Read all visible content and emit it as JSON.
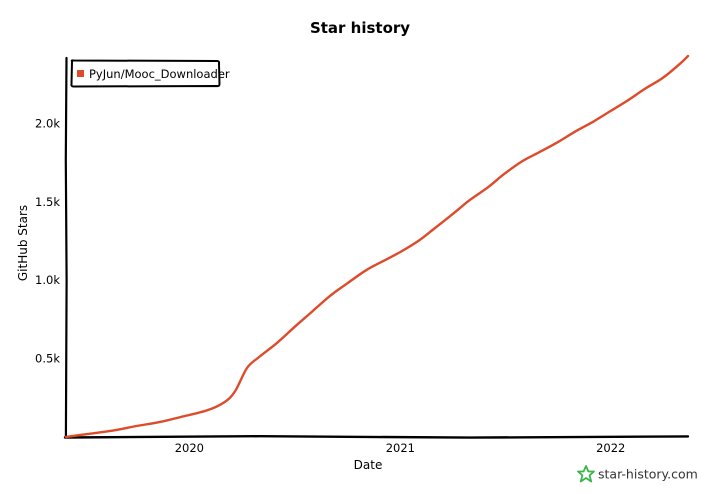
{
  "chart_data": {
    "type": "line",
    "title": "Star history",
    "xlabel": "Date",
    "ylabel": "GitHub Stars",
    "x_ticks": [
      "2020",
      "2021",
      "2022"
    ],
    "y_ticks": [
      "0.5k",
      "1.0k",
      "1.5k",
      "2.0k"
    ],
    "y_tick_values": [
      500,
      1000,
      1500,
      2000
    ],
    "xlim": [
      "2019-06-01",
      "2022-05-15"
    ],
    "ylim": [
      0,
      2430
    ],
    "grid": false,
    "legend_position": "top-left",
    "series": [
      {
        "name": "PyJun/Mooc_Downloader",
        "color": "#dd4b2a",
        "points": [
          [
            "2019-06-01",
            0
          ],
          [
            "2019-07-10",
            20
          ],
          [
            "2019-08-20",
            40
          ],
          [
            "2019-10-01",
            70
          ],
          [
            "2019-11-10",
            95
          ],
          [
            "2019-12-20",
            130
          ],
          [
            "2020-02-01",
            170
          ],
          [
            "2020-03-01",
            220
          ],
          [
            "2020-03-20",
            290
          ],
          [
            "2020-04-10",
            440
          ],
          [
            "2020-05-01",
            510
          ],
          [
            "2020-06-01",
            600
          ],
          [
            "2020-07-01",
            700
          ],
          [
            "2020-08-01",
            800
          ],
          [
            "2020-09-01",
            900
          ],
          [
            "2020-10-01",
            980
          ],
          [
            "2020-11-01",
            1060
          ],
          [
            "2020-12-01",
            1120
          ],
          [
            "2021-01-01",
            1180
          ],
          [
            "2021-02-01",
            1250
          ],
          [
            "2021-03-01",
            1330
          ],
          [
            "2021-04-01",
            1420
          ],
          [
            "2021-05-01",
            1510
          ],
          [
            "2021-06-01",
            1590
          ],
          [
            "2021-07-01",
            1680
          ],
          [
            "2021-08-01",
            1760
          ],
          [
            "2021-09-01",
            1820
          ],
          [
            "2021-10-01",
            1880
          ],
          [
            "2021-11-01",
            1950
          ],
          [
            "2021-12-01",
            2010
          ],
          [
            "2022-01-01",
            2080
          ],
          [
            "2022-02-01",
            2150
          ],
          [
            "2022-03-01",
            2220
          ],
          [
            "2022-04-01",
            2290
          ],
          [
            "2022-05-01",
            2380
          ],
          [
            "2022-05-15",
            2430
          ]
        ]
      }
    ]
  },
  "watermark": {
    "text": "star-history.com",
    "icon": "star-icon",
    "color": "#3ab54a"
  }
}
